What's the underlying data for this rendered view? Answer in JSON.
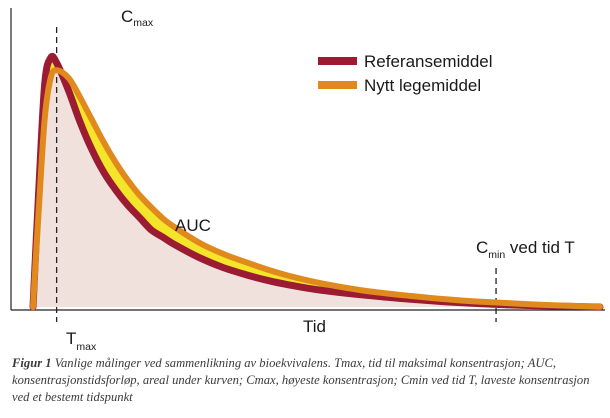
{
  "chart_data": {
    "type": "area",
    "x": [
      0,
      0.25,
      0.5,
      0.75,
      1,
      1.5,
      2,
      2.5,
      3,
      3.5,
      4,
      4.5,
      5,
      5.5,
      6,
      7,
      8,
      9,
      10,
      11,
      12,
      13,
      14,
      15,
      16,
      17,
      18,
      19,
      20,
      21,
      22,
      23,
      24
    ],
    "series": [
      {
        "name": "Referansemiddel",
        "color": "#9a1b32",
        "values": [
          0,
          0.48,
          0.9,
          1.0,
          0.98,
          0.87,
          0.74,
          0.63,
          0.54,
          0.47,
          0.41,
          0.36,
          0.31,
          0.28,
          0.25,
          0.2,
          0.16,
          0.13,
          0.105,
          0.086,
          0.07,
          0.058,
          0.048,
          0.039,
          0.031,
          0.024,
          0.018,
          0.013,
          0.009,
          0.006,
          0.004,
          0.002,
          0
        ]
      },
      {
        "name": "Nytt legemiddel",
        "color": "#e08a1e",
        "values": [
          0,
          0.4,
          0.76,
          0.92,
          0.95,
          0.92,
          0.84,
          0.75,
          0.66,
          0.58,
          0.51,
          0.45,
          0.4,
          0.355,
          0.32,
          0.26,
          0.215,
          0.18,
          0.148,
          0.121,
          0.099,
          0.081,
          0.066,
          0.054,
          0.044,
          0.035,
          0.027,
          0.021,
          0.016,
          0.011,
          0.007,
          0.004,
          0.001
        ]
      }
    ],
    "area_between_color": "#f5e52a",
    "auc_fill_color": "#f0e1dc",
    "xlim": [
      0,
      24
    ],
    "ylim": [
      0,
      1.2
    ],
    "xlabel": "Tid",
    "annotations": {
      "cmax": {
        "label": "C",
        "sub": "max",
        "x": 1.0
      },
      "tmax": {
        "label": "T",
        "sub": "max"
      },
      "auc": {
        "label": "AUC"
      },
      "cmin": {
        "label": "C",
        "sub": "min",
        "suffix": " ved tid T",
        "x": 19.6
      }
    },
    "legend_position": "top-right"
  },
  "caption": {
    "bold": "Figur 1",
    "text": " Vanlige målinger ved sammenlikning av bioekvivalens. Tmax, tid til maksimal konsentrasjon; AUC, konsentrasjonstidsforløp, areal under kurven; Cmax, høyeste konsentrasjon; Cmin ved tid T, laveste konsentrasjon ved et bestemt tidspunkt"
  }
}
